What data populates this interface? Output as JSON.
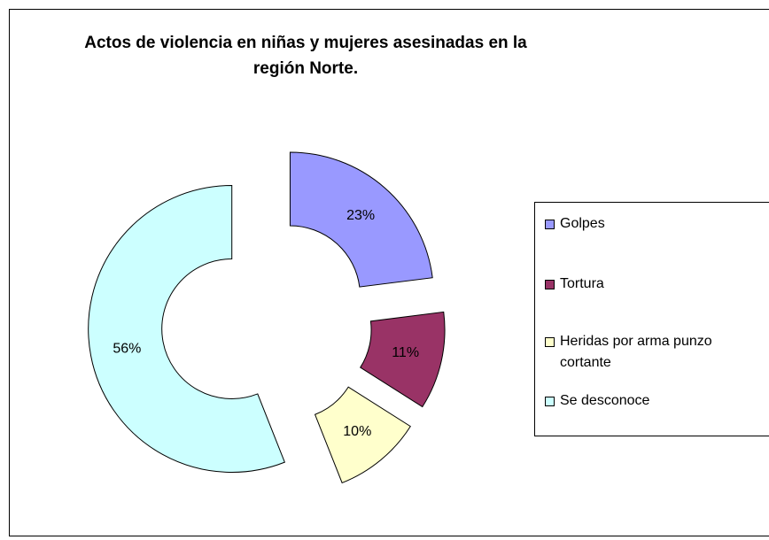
{
  "chart_data": {
    "type": "doughnut",
    "title": "Actos de violencia en niñas y mujeres asesinadas en la región  Norte.",
    "categories": [
      "Golpes",
      "Tortura",
      "Heridas por arma punzo cortante",
      "Se desconoce"
    ],
    "values": [
      23,
      11,
      10,
      56
    ],
    "value_labels": [
      "23%",
      "11%",
      "10%",
      "56%"
    ],
    "colors": [
      "#9999ff",
      "#993366",
      "#ffffcc",
      "#ccffff"
    ],
    "legend": "right"
  }
}
